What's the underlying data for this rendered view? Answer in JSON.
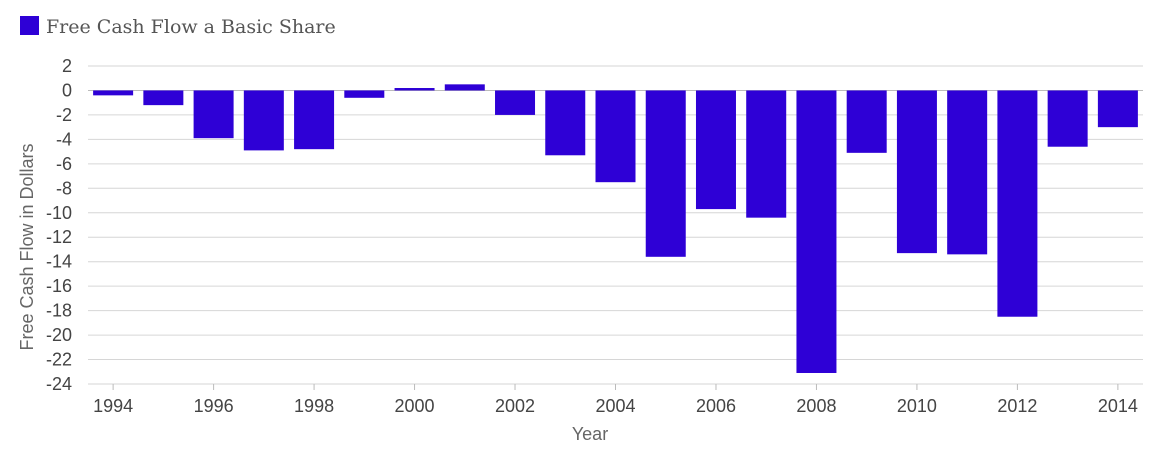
{
  "chart_data": {
    "type": "bar",
    "title": "",
    "xlabel": "Year",
    "ylabel": "Free Cash Flow in Dollars",
    "ylim": [
      -24,
      2
    ],
    "yticks": [
      2,
      0,
      -2,
      -4,
      -6,
      -8,
      -10,
      -12,
      -14,
      -16,
      -18,
      -20,
      -22,
      -24
    ],
    "legend": "top-left",
    "grid": true,
    "categories": [
      "1994",
      "1995",
      "1996",
      "1997",
      "1998",
      "1999",
      "2000",
      "2001",
      "2002",
      "2003",
      "2004",
      "2005",
      "2006",
      "2007",
      "2008",
      "2009",
      "2010",
      "2011",
      "2012",
      "2013",
      "2014"
    ],
    "xtick_labels": [
      "1994",
      "1996",
      "1998",
      "2000",
      "2002",
      "2004",
      "2006",
      "2008",
      "2010",
      "2012",
      "2014"
    ],
    "series": [
      {
        "name": "Free Cash Flow a Basic Share",
        "color": "#2e00d6",
        "values": [
          -0.4,
          -1.2,
          -3.9,
          -4.9,
          -4.8,
          -0.6,
          0.2,
          0.5,
          -2.0,
          -5.3,
          -7.5,
          -13.6,
          -9.7,
          -10.4,
          -23.1,
          -5.1,
          -13.3,
          -13.4,
          -18.5,
          -4.6,
          -3.0
        ]
      }
    ]
  }
}
